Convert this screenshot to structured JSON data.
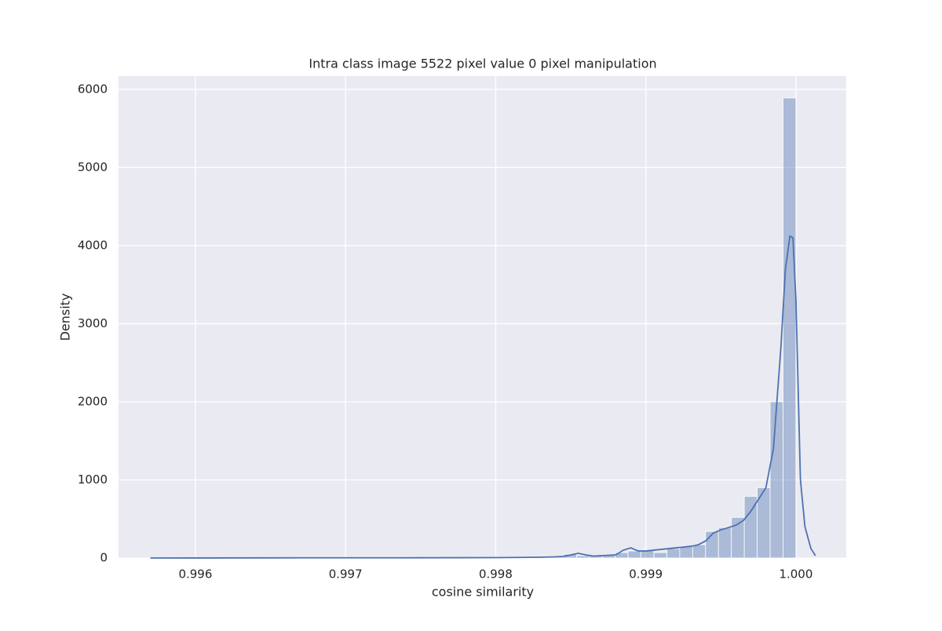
{
  "chart_data": {
    "type": "histogram",
    "title": "Intra class image 5522 pixel value 0 pixel manipulation",
    "x_label": "cosine similarity",
    "y_label": "Density",
    "bins": [
      0.9957,
      0.995786,
      0.995872,
      0.995958,
      0.996044,
      0.99613,
      0.996216,
      0.996302,
      0.996388,
      0.996474,
      0.99656,
      0.996646,
      0.996732,
      0.996818,
      0.996904,
      0.99699,
      0.997076,
      0.997162,
      0.997248,
      0.997334,
      0.99742,
      0.997506,
      0.997592,
      0.997678,
      0.997764,
      0.99785,
      0.997936,
      0.998022,
      0.998108,
      0.998194,
      0.99828,
      0.998366,
      0.998452,
      0.998538,
      0.998624,
      0.99871,
      0.998796,
      0.998882,
      0.998968,
      0.999054,
      0.99914,
      0.999226,
      0.999312,
      0.999398,
      0.999484,
      0.99957,
      0.999656,
      0.999742,
      0.999828,
      0.999914,
      1.0
    ],
    "counts": [
      3,
      0,
      0,
      0,
      2,
      0,
      0,
      2,
      0,
      0,
      2,
      0,
      0,
      2,
      0,
      2,
      0,
      2,
      0,
      2,
      3,
      3,
      3,
      3,
      5,
      5,
      5,
      5,
      8,
      8,
      10,
      15,
      50,
      30,
      35,
      40,
      70,
      90,
      100,
      70,
      120,
      150,
      170,
      340,
      390,
      520,
      790,
      900,
      2000,
      5890
    ],
    "color": "#4c72b0",
    "kde": {
      "color": "#4c72b0",
      "x": [
        0.9957,
        0.9965,
        0.9975,
        0.998,
        0.9983,
        0.9984,
        0.99845,
        0.9985,
        0.99855,
        0.9986,
        0.99865,
        0.9987,
        0.9988,
        0.99885,
        0.9989,
        0.99895,
        0.999,
        0.99905,
        0.9991,
        0.9992,
        0.9993,
        0.99935,
        0.9994,
        0.99945,
        0.9995,
        0.9996,
        0.99965,
        0.9997,
        0.99975,
        0.9998,
        0.99985,
        0.9999,
        0.99993,
        0.99996,
        0.99998,
        1.0,
        1.00003,
        1.00006,
        1.0001,
        1.00013
      ],
      "y": [
        0,
        2,
        3,
        5,
        10,
        15,
        20,
        40,
        60,
        40,
        25,
        30,
        40,
        100,
        130,
        90,
        90,
        100,
        110,
        130,
        150,
        170,
        220,
        320,
        360,
        420,
        480,
        600,
        750,
        900,
        1400,
        2700,
        3700,
        4120,
        4100,
        3300,
        1000,
        400,
        120,
        30
      ]
    },
    "xlim": [
      0.995488,
      1.000335
    ],
    "ylim": [
      0,
      6170
    ],
    "xticks": [
      0.996,
      0.997,
      0.998,
      0.999,
      {
        "value": 1,
        "label": "1.000"
      }
    ],
    "yticks": [
      0,
      1000,
      2000,
      3000,
      4000,
      5000,
      6000
    ],
    "grid": true
  }
}
